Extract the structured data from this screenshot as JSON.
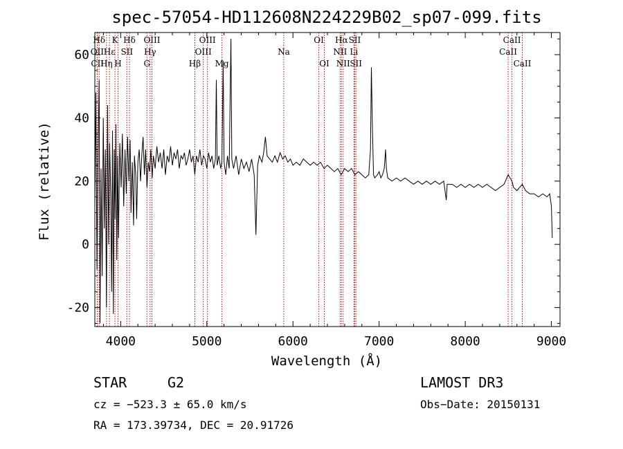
{
  "chart_data": {
    "type": "line",
    "title": "spec-57054-HD112608N224229B02_sp07-099.fits",
    "xlabel": "Wavelength (Å)",
    "ylabel": "Flux (relative)",
    "xlim": [
      3700,
      9100
    ],
    "ylim": [
      -26,
      67
    ],
    "x_ticks": [
      4000,
      5000,
      6000,
      7000,
      8000,
      9000
    ],
    "y_ticks": [
      -20,
      0,
      20,
      40,
      60
    ],
    "spectral_lines": [
      {
        "label": "Hδ",
        "wavelength": 3750,
        "row": 0
      },
      {
        "label": "OII",
        "wavelength": 3727,
        "row": 1
      },
      {
        "label": "CII",
        "wavelength": 3730,
        "row": 2
      },
      {
        "label": "K",
        "wavelength": 3934,
        "row": 0
      },
      {
        "label": "Hε",
        "wavelength": 3870,
        "row": 1
      },
      {
        "label": "Hη",
        "wavelength": 3835,
        "row": 2
      },
      {
        "label": "H",
        "wavelength": 3969,
        "row": 2
      },
      {
        "label": "Hδ",
        "wavelength": 4102,
        "row": 0
      },
      {
        "label": "SII",
        "wavelength": 4072,
        "row": 1
      },
      {
        "label": "OIII",
        "wavelength": 4363,
        "row": 0
      },
      {
        "label": "Hγ",
        "wavelength": 4341,
        "row": 1
      },
      {
        "label": "G",
        "wavelength": 4305,
        "row": 2
      },
      {
        "label": "Hβ",
        "wavelength": 4861,
        "row": 2
      },
      {
        "label": "OIII",
        "wavelength": 5007,
        "row": 0
      },
      {
        "label": "OIII",
        "wavelength": 4959,
        "row": 1
      },
      {
        "label": "Mg",
        "wavelength": 5175,
        "row": 2
      },
      {
        "label": "Na",
        "wavelength": 5893,
        "row": 1
      },
      {
        "label": "OI",
        "wavelength": 6300,
        "row": 0
      },
      {
        "label": "OI",
        "wavelength": 6364,
        "row": 2
      },
      {
        "label": "Hα",
        "wavelength": 6563,
        "row": 0
      },
      {
        "label": "NII",
        "wavelength": 6548,
        "row": 1
      },
      {
        "label": "NII",
        "wavelength": 6583,
        "row": 2
      },
      {
        "label": "SII",
        "wavelength": 6717,
        "row": 0
      },
      {
        "label": "Li",
        "wavelength": 6708,
        "row": 1
      },
      {
        "label": "SII",
        "wavelength": 6731,
        "row": 2
      },
      {
        "label": "CaII",
        "wavelength": 8542,
        "row": 0
      },
      {
        "label": "CaII",
        "wavelength": 8498,
        "row": 1
      },
      {
        "label": "CaII",
        "wavelength": 8662,
        "row": 2
      }
    ],
    "series": [
      {
        "name": "spectrum",
        "points": [
          [
            3700,
            12
          ],
          [
            3712,
            48
          ],
          [
            3725,
            -8
          ],
          [
            3738,
            30
          ],
          [
            3750,
            52
          ],
          [
            3760,
            -25
          ],
          [
            3772,
            24
          ],
          [
            3785,
            -10
          ],
          [
            3798,
            40
          ],
          [
            3810,
            5
          ],
          [
            3822,
            30
          ],
          [
            3835,
            -20
          ],
          [
            3848,
            44
          ],
          [
            3860,
            0
          ],
          [
            3872,
            32
          ],
          [
            3885,
            15
          ],
          [
            3895,
            -15
          ],
          [
            3905,
            36
          ],
          [
            3915,
            -22
          ],
          [
            3925,
            30
          ],
          [
            3935,
            8
          ],
          [
            3945,
            38
          ],
          [
            3955,
            -5
          ],
          [
            3965,
            28
          ],
          [
            3975,
            2
          ],
          [
            3990,
            32
          ],
          [
            4005,
            18
          ],
          [
            4020,
            35
          ],
          [
            4035,
            12
          ],
          [
            4050,
            30
          ],
          [
            4065,
            16
          ],
          [
            4080,
            34
          ],
          [
            4095,
            20
          ],
          [
            4110,
            33
          ],
          [
            4120,
            10
          ],
          [
            4135,
            26
          ],
          [
            4150,
            6
          ],
          [
            4160,
            28
          ],
          [
            4175,
            22
          ],
          [
            4185,
            8
          ],
          [
            4200,
            26
          ],
          [
            4215,
            30
          ],
          [
            4230,
            20
          ],
          [
            4245,
            28
          ],
          [
            4260,
            34
          ],
          [
            4275,
            22
          ],
          [
            4290,
            30
          ],
          [
            4305,
            18
          ],
          [
            4320,
            26
          ],
          [
            4335,
            23
          ],
          [
            4350,
            30
          ],
          [
            4365,
            21
          ],
          [
            4380,
            28
          ],
          [
            4400,
            24
          ],
          [
            4420,
            31
          ],
          [
            4440,
            26
          ],
          [
            4460,
            29
          ],
          [
            4480,
            24
          ],
          [
            4500,
            30
          ],
          [
            4520,
            22
          ],
          [
            4540,
            28
          ],
          [
            4560,
            26
          ],
          [
            4580,
            31
          ],
          [
            4600,
            25
          ],
          [
            4620,
            29
          ],
          [
            4640,
            27
          ],
          [
            4660,
            30
          ],
          [
            4680,
            24
          ],
          [
            4700,
            28
          ],
          [
            4720,
            27
          ],
          [
            4740,
            29
          ],
          [
            4760,
            25
          ],
          [
            4780,
            27
          ],
          [
            4800,
            30
          ],
          [
            4820,
            26
          ],
          [
            4840,
            28
          ],
          [
            4860,
            22
          ],
          [
            4880,
            28
          ],
          [
            4900,
            26
          ],
          [
            4920,
            30
          ],
          [
            4940,
            25
          ],
          [
            4960,
            28
          ],
          [
            4980,
            27
          ],
          [
            5000,
            24
          ],
          [
            5020,
            29
          ],
          [
            5040,
            26
          ],
          [
            5060,
            28
          ],
          [
            5080,
            24
          ],
          [
            5100,
            27
          ],
          [
            5110,
            52
          ],
          [
            5120,
            25
          ],
          [
            5140,
            28
          ],
          [
            5160,
            24
          ],
          [
            5175,
            26
          ],
          [
            5190,
            58
          ],
          [
            5200,
            26
          ],
          [
            5220,
            22
          ],
          [
            5240,
            28
          ],
          [
            5260,
            24
          ],
          [
            5280,
            65
          ],
          [
            5290,
            27
          ],
          [
            5310,
            24
          ],
          [
            5340,
            28
          ],
          [
            5370,
            22
          ],
          [
            5400,
            27
          ],
          [
            5430,
            24
          ],
          [
            5460,
            26
          ],
          [
            5490,
            23
          ],
          [
            5520,
            27
          ],
          [
            5550,
            22
          ],
          [
            5570,
            3
          ],
          [
            5590,
            25
          ],
          [
            5610,
            28
          ],
          [
            5640,
            26
          ],
          [
            5660,
            29
          ],
          [
            5680,
            34
          ],
          [
            5700,
            28
          ],
          [
            5730,
            27
          ],
          [
            5760,
            26
          ],
          [
            5790,
            28
          ],
          [
            5820,
            26
          ],
          [
            5850,
            29
          ],
          [
            5880,
            27
          ],
          [
            5910,
            28
          ],
          [
            5940,
            26
          ],
          [
            5970,
            27
          ],
          [
            6000,
            25
          ],
          [
            6040,
            26
          ],
          [
            6080,
            25
          ],
          [
            6120,
            27
          ],
          [
            6160,
            26
          ],
          [
            6200,
            25
          ],
          [
            6240,
            26
          ],
          [
            6280,
            25
          ],
          [
            6320,
            26
          ],
          [
            6360,
            24
          ],
          [
            6400,
            25
          ],
          [
            6440,
            24
          ],
          [
            6480,
            23
          ],
          [
            6520,
            24
          ],
          [
            6560,
            22
          ],
          [
            6600,
            24
          ],
          [
            6640,
            23
          ],
          [
            6680,
            24
          ],
          [
            6720,
            22
          ],
          [
            6760,
            23
          ],
          [
            6800,
            22
          ],
          [
            6840,
            21
          ],
          [
            6880,
            22
          ],
          [
            6900,
            30
          ],
          [
            6910,
            56
          ],
          [
            6920,
            40
          ],
          [
            6935,
            22
          ],
          [
            6950,
            21
          ],
          [
            6980,
            22
          ],
          [
            7000,
            23
          ],
          [
            7020,
            21
          ],
          [
            7040,
            22
          ],
          [
            7060,
            24
          ],
          [
            7075,
            30
          ],
          [
            7085,
            24
          ],
          [
            7100,
            21
          ],
          [
            7150,
            20
          ],
          [
            7200,
            21
          ],
          [
            7250,
            20
          ],
          [
            7300,
            21
          ],
          [
            7350,
            20
          ],
          [
            7400,
            19
          ],
          [
            7450,
            20
          ],
          [
            7500,
            19
          ],
          [
            7550,
            20
          ],
          [
            7600,
            19
          ],
          [
            7650,
            20
          ],
          [
            7700,
            19
          ],
          [
            7750,
            20
          ],
          [
            7780,
            14
          ],
          [
            7790,
            19
          ],
          [
            7850,
            19
          ],
          [
            7900,
            18
          ],
          [
            7950,
            19
          ],
          [
            8000,
            18
          ],
          [
            8050,
            19
          ],
          [
            8100,
            18
          ],
          [
            8150,
            19
          ],
          [
            8200,
            18
          ],
          [
            8250,
            19
          ],
          [
            8300,
            18
          ],
          [
            8350,
            17
          ],
          [
            8400,
            18
          ],
          [
            8450,
            19
          ],
          [
            8498,
            22
          ],
          [
            8542,
            20
          ],
          [
            8560,
            18
          ],
          [
            8600,
            17
          ],
          [
            8662,
            19
          ],
          [
            8700,
            17
          ],
          [
            8750,
            16
          ],
          [
            8800,
            16
          ],
          [
            8850,
            15
          ],
          [
            8900,
            16
          ],
          [
            8950,
            15
          ],
          [
            8980,
            16
          ],
          [
            9000,
            12
          ],
          [
            9010,
            2
          ]
        ]
      }
    ]
  },
  "info": {
    "object_type": "STAR",
    "subclass": "G2",
    "survey": "LAMOST DR3",
    "cz": "cz = −523.3 ± 65.0 km/s",
    "obs_date": "Obs−Date: 20150131",
    "coords": "RA = 173.39734, DEC =  20.91726"
  }
}
